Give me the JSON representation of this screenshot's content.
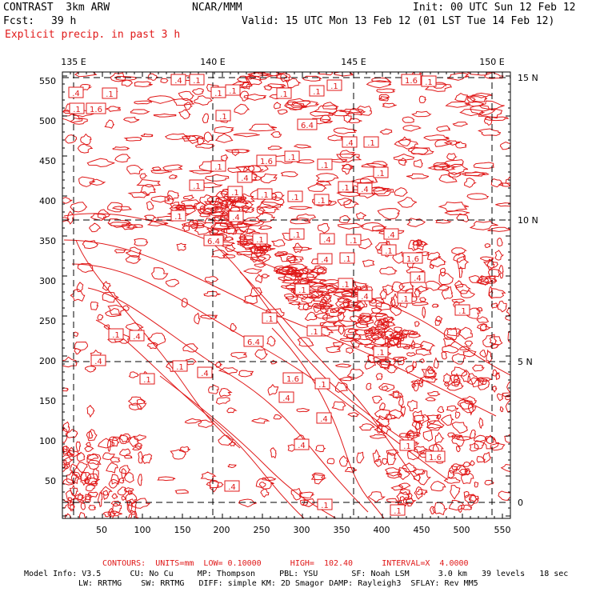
{
  "header": {
    "title": "CONTRAST  3km ARW",
    "fcst_label": "Fcst:",
    "fcst_value": "39 h",
    "field_desc": "Explicit precip. in past 3 h",
    "center": "NCAR/MMM",
    "init": "Init: 00 UTC Sun 12 Feb 12",
    "valid": "Valid: 15 UTC Mon 13 Feb 12 (01 LST Tue 14 Feb 12)"
  },
  "map": {
    "lon_labels": [
      "135 E",
      "140 E",
      "145 E",
      "150 E"
    ],
    "lat_labels": [
      "15 N",
      "10 N",
      "5 N",
      "0"
    ],
    "x_ticks": [
      "50",
      "100",
      "150",
      "200",
      "250",
      "300",
      "350",
      "400",
      "450",
      "500",
      "550"
    ],
    "y_ticks": [
      "550",
      "500",
      "450",
      "400",
      "350",
      "300",
      "250",
      "200",
      "150",
      "100",
      "50"
    ],
    "contour_labels": [
      ".4",
      ".1",
      ".1",
      "1.6",
      ".1",
      ".4",
      ".1",
      ".1",
      ".1",
      ".1",
      ".1",
      "1.6",
      ".1",
      "6.4",
      ".1",
      "1.6",
      ".1",
      ".1",
      ".4",
      ".1",
      ".1",
      ".4",
      ".1",
      ".1",
      ".1",
      ".1",
      ".1",
      ".1",
      ".4",
      ".1",
      ".1",
      ".4",
      "6.4",
      ".1",
      ".1",
      ".4",
      ".1",
      ".4",
      ".1",
      ".4",
      ".1",
      "1.6",
      ".4",
      ".1",
      ".1",
      ".4",
      ".1",
      ".1",
      ".1",
      "6.4",
      ".1",
      ".4",
      ".1",
      ".4",
      ".1",
      ".4",
      ".1",
      "1.6",
      ".1",
      ".4",
      ".4",
      ".4",
      ".1",
      "1.6",
      ".1",
      ".1",
      ".4",
      ".1"
    ],
    "line_color": "#e01818",
    "grid_color": "#000000"
  },
  "footer": {
    "contours": "CONTOURS:  UNITS=mm  LOW= 0.10000      HIGH=  102.40      INTERVAL=X  4.0000",
    "model_line1": "Model Info: V3.5      CU: No Cu     MP: Thompson     PBL: YSU       SF: Noah LSM      3.0 km   39 levels   18 sec",
    "model_line2": "LW: RRTMG    SW: RRTMG   DIFF: simple KM: 2D Smagor DAMP: Rayleigh3  SFLAY: Rev MM5"
  }
}
